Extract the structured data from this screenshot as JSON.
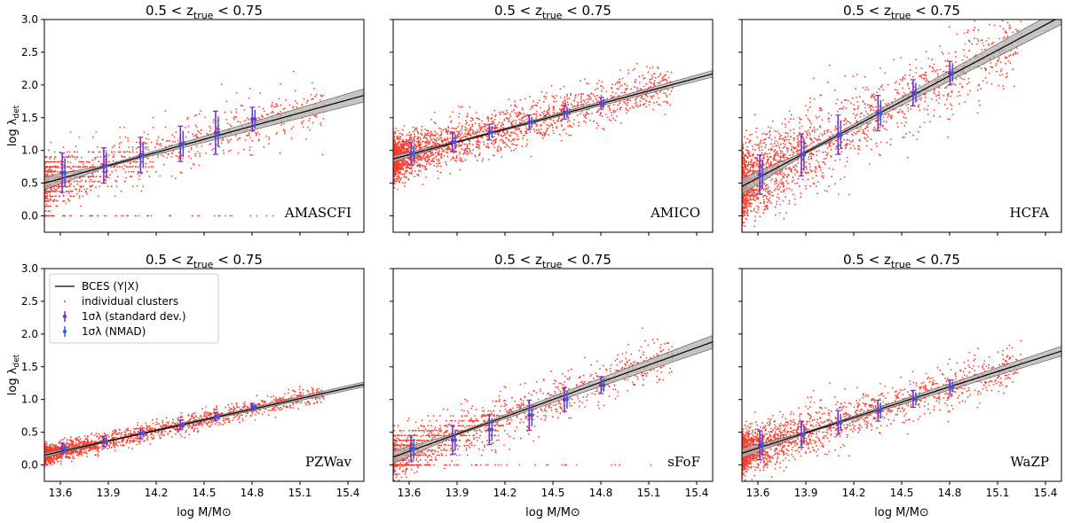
{
  "figure": {
    "xlabel": "log M/M⊙",
    "ylabel_main": "log λ",
    "ylabel_sub": "det",
    "title_main": "0.5 < z",
    "title_sub": "true",
    "title_tail": " < 0.75",
    "xticks": [
      13.6,
      13.9,
      14.2,
      14.5,
      14.8,
      15.1,
      15.4
    ],
    "yticks": [
      0.0,
      0.5,
      1.0,
      1.5,
      2.0,
      2.5,
      3.0
    ],
    "xlim": [
      13.5,
      15.5
    ],
    "ylim": [
      -0.25,
      3.0
    ],
    "colors": {
      "points": "#ff3a2a",
      "fit_line": "#000000",
      "fit_band": "#b0b0b0",
      "errbar_std": "#7a2fbf",
      "errbar_nmad": "#3d5bd9"
    },
    "legend": {
      "fit": "BCES (Y|X)",
      "points": "individual clusters",
      "std": "1σλ (standard dev.)",
      "nmad": "1σλ (NMAD)"
    }
  },
  "chart_data": [
    {
      "type": "scatter",
      "name": "AMASCFI",
      "title": "0.5 < z_true < 0.75",
      "fit": {
        "intercept_at_13_5": 0.5,
        "slope": 0.67,
        "band": 0.04
      },
      "bins": [
        {
          "x": 13.62,
          "y": 0.66,
          "std": 0.3,
          "nmad": 0.22
        },
        {
          "x": 13.88,
          "y": 0.77,
          "std": 0.27,
          "nmad": 0.2
        },
        {
          "x": 14.11,
          "y": 0.93,
          "std": 0.27,
          "nmad": 0.2
        },
        {
          "x": 14.36,
          "y": 1.1,
          "std": 0.27,
          "nmad": 0.2
        },
        {
          "x": 14.58,
          "y": 1.27,
          "std": 0.33,
          "nmad": 0.22
        },
        {
          "x": 14.81,
          "y": 1.48,
          "std": 0.18,
          "nmad": 0.14
        }
      ]
    },
    {
      "type": "scatter",
      "name": "AMICO",
      "title": "0.5 < z_true < 0.75",
      "fit": {
        "intercept_at_13_5": 0.87,
        "slope": 0.65,
        "band": 0.02
      },
      "bins": [
        {
          "x": 13.62,
          "y": 0.95,
          "std": 0.17,
          "nmad": 0.12
        },
        {
          "x": 13.88,
          "y": 1.13,
          "std": 0.15,
          "nmad": 0.11
        },
        {
          "x": 14.11,
          "y": 1.28,
          "std": 0.12,
          "nmad": 0.09
        },
        {
          "x": 14.36,
          "y": 1.43,
          "std": 0.11,
          "nmad": 0.08
        },
        {
          "x": 14.58,
          "y": 1.58,
          "std": 0.1,
          "nmad": 0.08
        },
        {
          "x": 14.81,
          "y": 1.72,
          "std": 0.09,
          "nmad": 0.07
        }
      ]
    },
    {
      "type": "scatter",
      "name": "HCFA",
      "title": "0.5 < z_true < 0.75",
      "fit": {
        "intercept_at_13_5": 0.45,
        "slope": 1.3,
        "band": 0.05
      },
      "bins": [
        {
          "x": 13.62,
          "y": 0.63,
          "std": 0.3,
          "nmad": 0.22
        },
        {
          "x": 13.88,
          "y": 0.93,
          "std": 0.32,
          "nmad": 0.24
        },
        {
          "x": 14.11,
          "y": 1.24,
          "std": 0.3,
          "nmad": 0.22
        },
        {
          "x": 14.36,
          "y": 1.57,
          "std": 0.27,
          "nmad": 0.2
        },
        {
          "x": 14.58,
          "y": 1.88,
          "std": 0.2,
          "nmad": 0.15
        },
        {
          "x": 14.81,
          "y": 2.18,
          "std": 0.18,
          "nmad": 0.13
        }
      ]
    },
    {
      "type": "scatter",
      "name": "PZWav",
      "title": "0.5 < z_true < 0.75",
      "fit": {
        "intercept_at_13_5": 0.15,
        "slope": 0.54,
        "band": 0.015
      },
      "bins": [
        {
          "x": 13.62,
          "y": 0.25,
          "std": 0.08,
          "nmad": 0.06
        },
        {
          "x": 13.88,
          "y": 0.36,
          "std": 0.08,
          "nmad": 0.06
        },
        {
          "x": 14.11,
          "y": 0.48,
          "std": 0.07,
          "nmad": 0.05
        },
        {
          "x": 14.36,
          "y": 0.61,
          "std": 0.07,
          "nmad": 0.05
        },
        {
          "x": 14.58,
          "y": 0.74,
          "std": 0.06,
          "nmad": 0.05
        },
        {
          "x": 14.81,
          "y": 0.89,
          "std": 0.05,
          "nmad": 0.04
        }
      ]
    },
    {
      "type": "scatter",
      "name": "sFoF",
      "title": "0.5 < z_true < 0.75",
      "fit": {
        "intercept_at_13_5": 0.12,
        "slope": 0.88,
        "band": 0.04
      },
      "bins": [
        {
          "x": 13.62,
          "y": 0.25,
          "std": 0.2,
          "nmad": 0.15
        },
        {
          "x": 13.88,
          "y": 0.38,
          "std": 0.22,
          "nmad": 0.16
        },
        {
          "x": 14.11,
          "y": 0.54,
          "std": 0.23,
          "nmad": 0.17
        },
        {
          "x": 14.36,
          "y": 0.76,
          "std": 0.23,
          "nmad": 0.17
        },
        {
          "x": 14.58,
          "y": 1.0,
          "std": 0.18,
          "nmad": 0.14
        },
        {
          "x": 14.81,
          "y": 1.22,
          "std": 0.13,
          "nmad": 0.1
        }
      ]
    },
    {
      "type": "scatter",
      "name": "WaZP",
      "title": "0.5 < z_true < 0.75",
      "fit": {
        "intercept_at_13_5": 0.18,
        "slope": 0.78,
        "band": 0.03
      },
      "bins": [
        {
          "x": 13.62,
          "y": 0.3,
          "std": 0.22,
          "nmad": 0.16
        },
        {
          "x": 13.88,
          "y": 0.47,
          "std": 0.2,
          "nmad": 0.15
        },
        {
          "x": 14.11,
          "y": 0.65,
          "std": 0.18,
          "nmad": 0.13
        },
        {
          "x": 14.36,
          "y": 0.83,
          "std": 0.16,
          "nmad": 0.12
        },
        {
          "x": 14.58,
          "y": 1.01,
          "std": 0.13,
          "nmad": 0.1
        },
        {
          "x": 14.81,
          "y": 1.19,
          "std": 0.11,
          "nmad": 0.08
        }
      ]
    }
  ]
}
